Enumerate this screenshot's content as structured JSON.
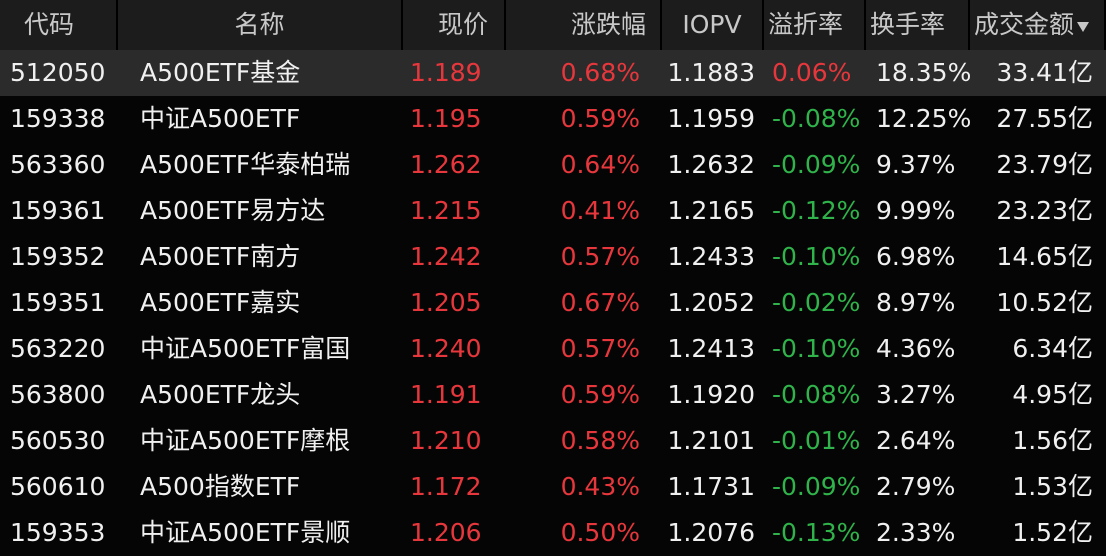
{
  "table": {
    "header": [
      "代码",
      "名称",
      "现价",
      "涨跌幅",
      "IOPV",
      "溢折率",
      "换手率",
      "成交金额"
    ],
    "rows": [
      [
        "512050",
        "A500ETF基金",
        "1.189",
        "0.68%",
        "1.1883",
        "0.06%",
        "18.35%",
        "33.41亿"
      ],
      [
        "159338",
        "中证A500ETF",
        "1.195",
        "0.59%",
        "1.1959",
        "-0.08%",
        "12.25%",
        "27.55亿"
      ],
      [
        "563360",
        "A500ETF华泰柏瑞",
        "1.262",
        "0.64%",
        "1.2632",
        "-0.09%",
        "9.37%",
        "23.79亿"
      ],
      [
        "159361",
        "A500ETF易方达",
        "1.215",
        "0.41%",
        "1.2165",
        "-0.12%",
        "9.99%",
        "23.23亿"
      ],
      [
        "159352",
        "A500ETF南方",
        "1.242",
        "0.57%",
        "1.2433",
        "-0.10%",
        "6.98%",
        "14.65亿"
      ],
      [
        "159351",
        "A500ETF嘉实",
        "1.205",
        "0.67%",
        "1.2052",
        "-0.02%",
        "8.97%",
        "10.52亿"
      ],
      [
        "563220",
        "中证A500ETF富国",
        "1.240",
        "0.57%",
        "1.2413",
        "-0.10%",
        "4.36%",
        "6.34亿"
      ],
      [
        "563800",
        "A500ETF龙头",
        "1.191",
        "0.59%",
        "1.1920",
        "-0.08%",
        "3.27%",
        "4.95亿"
      ],
      [
        "560530",
        "中证A500ETF摩根",
        "1.210",
        "0.58%",
        "1.2101",
        "-0.01%",
        "2.64%",
        "1.56亿"
      ],
      [
        "560610",
        "A500指数ETF",
        "1.172",
        "0.43%",
        "1.1731",
        "-0.09%",
        "2.79%",
        "1.53亿"
      ],
      [
        "159353",
        "中证A500ETF景顺",
        "1.206",
        "0.50%",
        "1.2076",
        "-0.13%",
        "2.33%",
        "1.52亿"
      ]
    ]
  }
}
